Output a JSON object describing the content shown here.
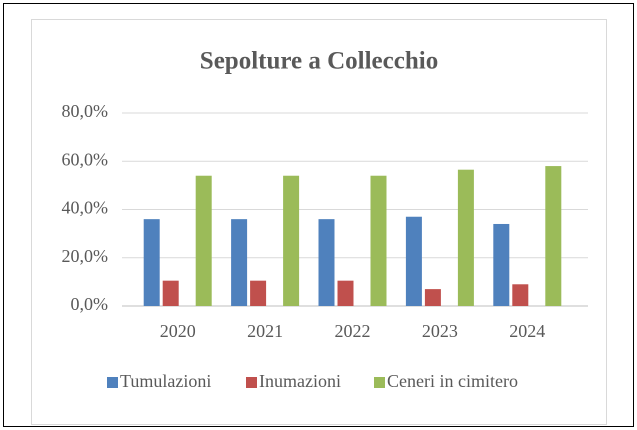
{
  "chart_data": {
    "type": "bar",
    "title": "Sepolture a Collecchio",
    "categories": [
      "2020",
      "2021",
      "2022",
      "2023",
      "2024"
    ],
    "series": [
      {
        "name": "Tumulazioni",
        "color": "#4f81bd",
        "values": [
          36,
          36,
          36,
          37,
          34
        ]
      },
      {
        "name": "Inumazioni",
        "color": "#c0504d",
        "values": [
          10.5,
          10.5,
          10.5,
          7,
          9
        ]
      },
      {
        "name": "Ceneri in cimitero",
        "color": "#9bbb59",
        "values": [
          54,
          54,
          54,
          56.5,
          58
        ]
      }
    ],
    "ylim": [
      0,
      80
    ],
    "yticks": [
      {
        "value": 0,
        "label": "0,0%"
      },
      {
        "value": 20,
        "label": "20,0%"
      },
      {
        "value": 40,
        "label": "40,0%"
      },
      {
        "value": 60,
        "label": "60,0%"
      },
      {
        "value": 80,
        "label": "80,0%"
      }
    ],
    "grid": true,
    "legend": "bottom"
  }
}
